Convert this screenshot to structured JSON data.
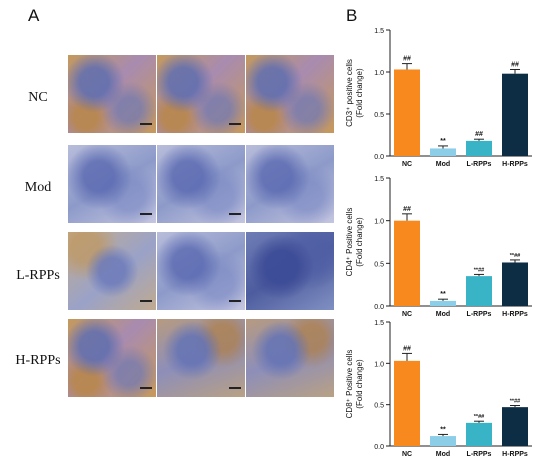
{
  "panels": {
    "a_label": "A",
    "b_label": "B"
  },
  "micrographs": {
    "row_labels": [
      "NC",
      "Mod",
      "L-RPPs",
      "H-RPPs"
    ],
    "staining": [
      [
        "brown-heavy",
        "brown-heavy",
        "brown-heavy"
      ],
      [
        "blue",
        "blue",
        "blue"
      ],
      [
        "brown-light",
        "blue",
        "blue-dark"
      ],
      [
        "brown-heavy",
        "brown-medium",
        "brown-medium"
      ]
    ],
    "colors": {
      "hematoxylin": "#6d7fb5",
      "dab": "#b98a4e",
      "background": "#e7e3e7"
    }
  },
  "chart_data": [
    {
      "type": "bar",
      "categories": [
        "NC",
        "Mod",
        "L-RPPs",
        "H-RPPs"
      ],
      "values": [
        1.03,
        0.09,
        0.18,
        0.98
      ],
      "errors": [
        0.07,
        0.03,
        0.02,
        0.05
      ],
      "annotations": [
        "##",
        "**",
        "##",
        "##"
      ],
      "ylabel_line1": "CD3⁺ positive cells",
      "ylabel_line2": "(Fold change)",
      "ylim": [
        0,
        1.5
      ],
      "ticks": [
        0.0,
        0.5,
        1.0,
        1.5
      ],
      "tick_labels": [
        "0.0",
        "0.5",
        "1.0",
        "1.5"
      ],
      "colors": [
        "#f7891e",
        "#8ccde8",
        "#39b3c6",
        "#0d2d45"
      ]
    },
    {
      "type": "bar",
      "categories": [
        "NC",
        "Mod",
        "L-RPPs",
        "H-RPPs"
      ],
      "values": [
        1.0,
        0.06,
        0.35,
        0.51
      ],
      "errors": [
        0.08,
        0.02,
        0.02,
        0.03
      ],
      "annotations": [
        "##",
        "**",
        "**##",
        "**##"
      ],
      "ylabel_line1": "CD4⁺ Positive cells",
      "ylabel_line2": "(Fold change)",
      "ylim": [
        0,
        1.5
      ],
      "ticks": [
        0.0,
        0.5,
        1.0,
        1.5
      ],
      "tick_labels": [
        "0.0",
        "0.5",
        "1.0",
        "1.5"
      ],
      "colors": [
        "#f7891e",
        "#8ccde8",
        "#39b3c6",
        "#0d2d45"
      ]
    },
    {
      "type": "bar",
      "categories": [
        "NC",
        "Mod",
        "L-RPPs",
        "H-RPPs"
      ],
      "values": [
        1.03,
        0.12,
        0.28,
        0.47
      ],
      "errors": [
        0.09,
        0.02,
        0.02,
        0.02
      ],
      "annotations": [
        "##",
        "**",
        "**##",
        "**##"
      ],
      "ylabel_line1": "CD8⁺ Positive cells",
      "ylabel_line2": "(Fold change)",
      "ylim": [
        0,
        1.5
      ],
      "ticks": [
        0.0,
        0.5,
        1.0,
        1.5
      ],
      "tick_labels": [
        "0.0",
        "0.5",
        "1.0",
        "1.5"
      ],
      "colors": [
        "#f7891e",
        "#8ccde8",
        "#39b3c6",
        "#0d2d45"
      ]
    }
  ]
}
